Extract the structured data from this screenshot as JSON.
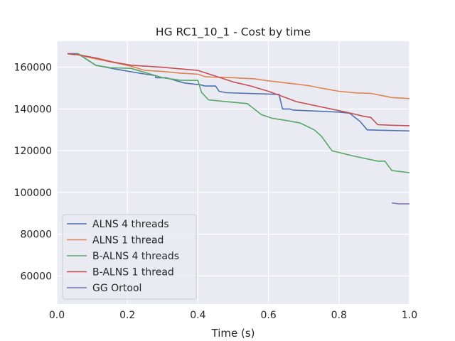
{
  "chart_data": {
    "type": "line",
    "title": "HG RC1_10_1 - Cost by time",
    "xlabel": "Time (s)",
    "ylabel": "",
    "xlim": [
      0.0,
      1.0
    ],
    "ylim": [
      46500,
      172500
    ],
    "xticks": [
      "0.0",
      "0.2",
      "0.4",
      "0.6",
      "0.8",
      "1.0"
    ],
    "xtick_values": [
      0.0,
      0.2,
      0.4,
      0.6,
      0.8,
      1.0
    ],
    "yticks": [
      "60000",
      "80000",
      "100000",
      "120000",
      "140000",
      "160000"
    ],
    "ytick_values": [
      60000,
      80000,
      100000,
      120000,
      140000,
      160000
    ],
    "grid": true,
    "legend_position": "lower-left",
    "series": [
      {
        "name": "ALNS 4 threads",
        "color": "#4c72b0",
        "x": [
          0.03,
          0.06,
          0.11,
          0.17,
          0.24,
          0.28,
          0.28,
          0.31,
          0.36,
          0.41,
          0.42,
          0.45,
          0.46,
          0.48,
          0.63,
          0.64,
          0.66,
          0.67,
          0.8,
          0.83,
          0.86,
          0.88,
          1.0
        ],
        "y": [
          166500,
          166500,
          161000,
          159000,
          157000,
          156000,
          155000,
          155000,
          152500,
          151500,
          151000,
          151000,
          148500,
          147800,
          147000,
          140000,
          140000,
          139500,
          138500,
          138000,
          134000,
          130000,
          129500
        ]
      },
      {
        "name": "ALNS 1 thread",
        "color": "#dd8452",
        "x": [
          0.03,
          0.06,
          0.11,
          0.17,
          0.21,
          0.25,
          0.3,
          0.35,
          0.4,
          0.42,
          0.44,
          0.5,
          0.56,
          0.6,
          0.65,
          0.7,
          0.72,
          0.75,
          0.8,
          0.85,
          0.89,
          0.92,
          0.95,
          1.0
        ],
        "y": [
          166500,
          166000,
          164000,
          162000,
          160500,
          158500,
          158000,
          157200,
          156700,
          155500,
          155300,
          155000,
          154500,
          153500,
          152500,
          151500,
          151000,
          150000,
          148500,
          147700,
          147500,
          146500,
          145500,
          145000
        ]
      },
      {
        "name": "B-ALNS 4 threads",
        "color": "#55a868",
        "x": [
          0.03,
          0.05,
          0.06,
          0.11,
          0.15,
          0.21,
          0.3,
          0.35,
          0.4,
          0.41,
          0.43,
          0.47,
          0.54,
          0.58,
          0.61,
          0.65,
          0.69,
          0.73,
          0.75,
          0.78,
          0.84,
          0.91,
          0.93,
          0.95,
          1.0
        ],
        "y": [
          166500,
          166000,
          166500,
          161000,
          159800,
          159500,
          155000,
          153800,
          153700,
          148000,
          144400,
          143700,
          142600,
          137300,
          135600,
          134500,
          133300,
          130000,
          127000,
          120000,
          117500,
          115000,
          115000,
          110500,
          109500
        ]
      },
      {
        "name": "B-ALNS 1 thread",
        "color": "#c44e52",
        "x": [
          0.03,
          0.06,
          0.11,
          0.16,
          0.21,
          0.3,
          0.4,
          0.5,
          0.55,
          0.6,
          0.64,
          0.68,
          0.75,
          0.82,
          0.87,
          0.89,
          0.91,
          0.95,
          1.0
        ],
        "y": [
          166500,
          166000,
          164500,
          162500,
          161000,
          160000,
          158500,
          153000,
          151000,
          148500,
          146000,
          143500,
          141000,
          138500,
          136500,
          136000,
          132500,
          132200,
          132000
        ]
      },
      {
        "name": "GG Ortool",
        "color": "#8172b3",
        "x": [
          0.95,
          0.97,
          1.0
        ],
        "y": [
          95000,
          94500,
          94500
        ]
      }
    ]
  }
}
